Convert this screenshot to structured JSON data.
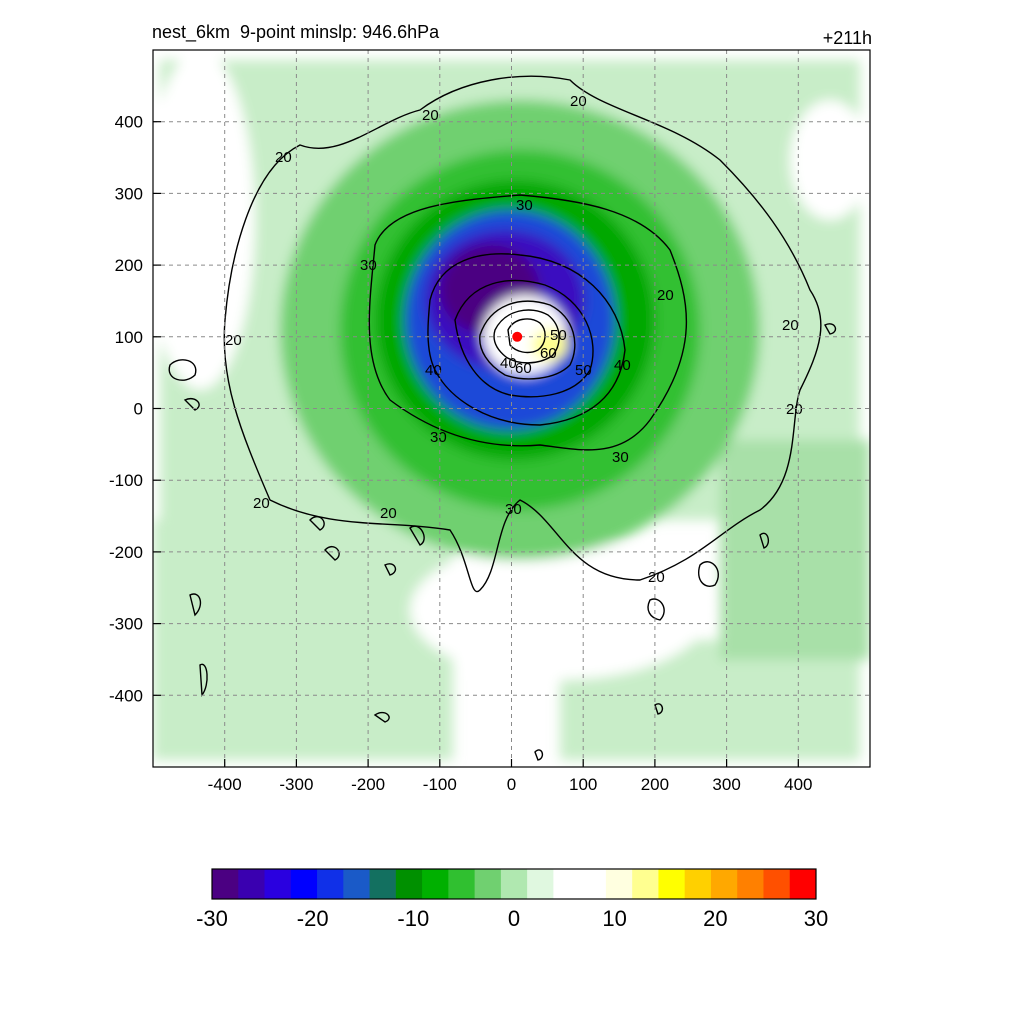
{
  "chart_data": {
    "type": "heatmap",
    "title_left": "nest_6km  9-point minslp: 946.6hPa",
    "title_right": "+211h",
    "xlabel": "",
    "ylabel": "",
    "xlim": [
      -500,
      500
    ],
    "ylim": [
      -500,
      500
    ],
    "x_ticks": [
      -400,
      -300,
      -200,
      -100,
      0,
      100,
      200,
      300,
      400
    ],
    "y_ticks": [
      400,
      300,
      200,
      100,
      0,
      -100,
      -200,
      -300,
      -400
    ],
    "grid": true,
    "center_marker": {
      "x": 8,
      "y": 100,
      "color": "#ff0000"
    },
    "colorbar": {
      "min": -30,
      "max": 30,
      "ticks": [
        -30,
        -20,
        -10,
        0,
        10,
        20,
        30
      ],
      "colors": [
        "#4b0082",
        "#3a00b0",
        "#2a00e0",
        "#0000ff",
        "#1030e8",
        "#1a5ac8",
        "#137060",
        "#009000",
        "#00b000",
        "#30c030",
        "#70d070",
        "#b0e8b0",
        "#e0f8e0",
        "#ffffff",
        "#ffffff",
        "#ffffe0",
        "#ffff90",
        "#ffff00",
        "#ffd000",
        "#ffa800",
        "#ff8000",
        "#ff5000",
        "#ff0000"
      ]
    },
    "contour_labels": [
      "20",
      "20",
      "20",
      "20",
      "20",
      "20",
      "20",
      "20",
      "20",
      "20",
      "30",
      "30",
      "30",
      "30",
      "30",
      "40",
      "40",
      "40",
      "50",
      "50",
      "60",
      "60"
    ]
  }
}
